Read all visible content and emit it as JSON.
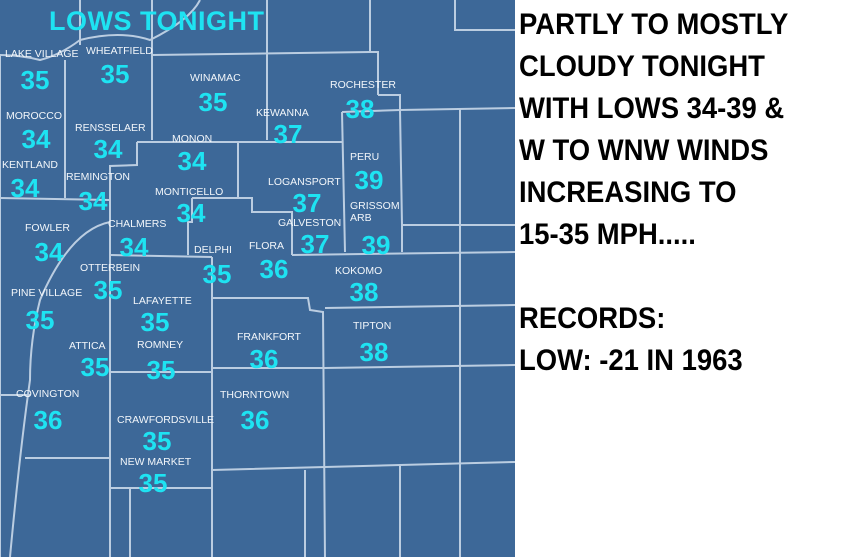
{
  "map": {
    "title": "LOWS TONIGHT",
    "colors": {
      "land": "#3d6898",
      "borders": "#c9d9ea",
      "temperature": "#1ee3f2",
      "labels": "#f2f6fa"
    },
    "cities": [
      {
        "name": "LAKE VILLAGE",
        "low": "35"
      },
      {
        "name": "WHEATFIELD",
        "low": "35"
      },
      {
        "name": "WINAMAC",
        "low": "35"
      },
      {
        "name": "ROCHESTER",
        "low": "38"
      },
      {
        "name": "MOROCCO",
        "low": "34"
      },
      {
        "name": "RENSSELAER",
        "low": "34"
      },
      {
        "name": "KEWANNA",
        "low": "37"
      },
      {
        "name": "MONON",
        "low": "34"
      },
      {
        "name": "PERU",
        "low": "39"
      },
      {
        "name": "KENTLAND",
        "low": "34"
      },
      {
        "name": "REMINGTON",
        "low": "34"
      },
      {
        "name": "LOGANSPORT",
        "low": "37"
      },
      {
        "name": "MONTICELLO",
        "low": "34"
      },
      {
        "name": "GALVESTON",
        "low": "37"
      },
      {
        "name": "GRISSOM ARB",
        "low": "39"
      },
      {
        "name": "FOWLER",
        "low": "34"
      },
      {
        "name": "CHALMERS",
        "low": "34"
      },
      {
        "name": "DELPHI",
        "low": "35"
      },
      {
        "name": "FLORA",
        "low": "36"
      },
      {
        "name": "OTTERBEIN",
        "low": "35"
      },
      {
        "name": "KOKOMO",
        "low": "38"
      },
      {
        "name": "PINE VILLAGE",
        "low": "35"
      },
      {
        "name": "LAFAYETTE",
        "low": "35"
      },
      {
        "name": "TIPTON",
        "low": "38"
      },
      {
        "name": "FRANKFORT",
        "low": "36"
      },
      {
        "name": "ATTICA",
        "low": "35"
      },
      {
        "name": "ROMNEY",
        "low": "35"
      },
      {
        "name": "COVINGTON",
        "low": "36"
      },
      {
        "name": "THORNTOWN",
        "low": "36"
      },
      {
        "name": "CRAWFORDSVILLE",
        "low": "35"
      },
      {
        "name": "NEW MARKET",
        "low": "35"
      }
    ]
  },
  "forecast": {
    "lines": [
      "PARTLY TO MOSTLY",
      "CLOUDY TONIGHT",
      "WITH LOWS 34-39 &",
      "W TO WNW WINDS",
      "INCREASING TO",
      "15-35 MPH....."
    ],
    "records_heading": "RECORDS:",
    "record_low": "LOW:  -21 IN 1963"
  }
}
